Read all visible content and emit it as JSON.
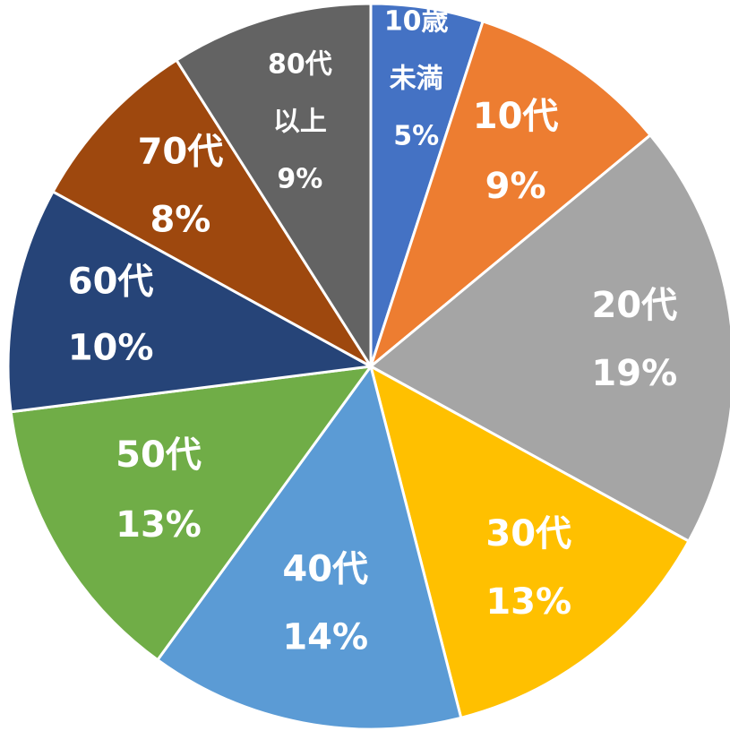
{
  "chart_data": {
    "type": "pie",
    "start_angle_deg": 0,
    "direction": "clockwise",
    "slice_border_color": "#ffffff",
    "slices": [
      {
        "lines": [
          "10歳",
          "未満"
        ],
        "percent_label": "5%",
        "value": 5,
        "color": "#4472C4"
      },
      {
        "lines": [
          "10代"
        ],
        "percent_label": "9%",
        "value": 9,
        "color": "#ED7D31"
      },
      {
        "lines": [
          "20代"
        ],
        "percent_label": "19%",
        "value": 19,
        "color": "#A5A5A5"
      },
      {
        "lines": [
          "30代"
        ],
        "percent_label": "13%",
        "value": 13,
        "color": "#FFC000"
      },
      {
        "lines": [
          "40代"
        ],
        "percent_label": "14%",
        "value": 14,
        "color": "#5B9BD5"
      },
      {
        "lines": [
          "50代"
        ],
        "percent_label": "13%",
        "value": 13,
        "color": "#70AD47"
      },
      {
        "lines": [
          "60代"
        ],
        "percent_label": "10%",
        "value": 10,
        "color": "#264478"
      },
      {
        "lines": [
          "70代"
        ],
        "percent_label": "8%",
        "value": 8,
        "color": "#9E480E"
      },
      {
        "lines": [
          "80代",
          "以上"
        ],
        "percent_label": "9%",
        "value": 9,
        "color": "#636363"
      }
    ]
  }
}
